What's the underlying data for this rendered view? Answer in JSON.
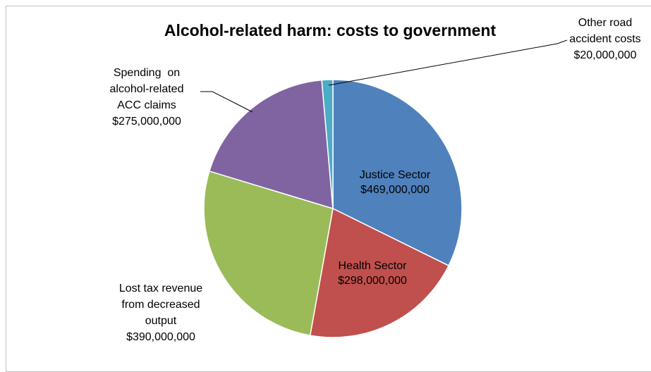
{
  "chart_data": {
    "type": "pie",
    "title": "Alcohol-related harm: costs to government",
    "start_angle_deg": 0,
    "direction": "clockwise",
    "slices": [
      {
        "name": "Justice Sector",
        "value": 469000000,
        "value_label": "$469,000,000",
        "label_lines": [
          "Justice Sector",
          "$469,000,000"
        ],
        "color": "#4f81bd"
      },
      {
        "name": "Health Sector",
        "value": 298000000,
        "value_label": "$298,000,000",
        "label_lines": [
          "Health Sector",
          "$298,000,000"
        ],
        "color": "#c0504d"
      },
      {
        "name": "Lost tax revenue from decreased output",
        "value": 390000000,
        "value_label": "$390,000,000",
        "label_lines": [
          "Lost tax revenue",
          "from decreased",
          "output",
          "$390,000,000"
        ],
        "color": "#9bbb59"
      },
      {
        "name": "Spending on alcohol-related ACC claims",
        "value": 275000000,
        "value_label": "$275,000,000",
        "label_lines": [
          "Spending  on",
          "alcohol-related",
          "ACC claims",
          "$275,000,000"
        ],
        "color": "#8064a2"
      },
      {
        "name": "Other road accident costs",
        "value": 20000000,
        "value_label": "$20,000,000",
        "label_lines": [
          "Other road",
          "accident costs",
          "$20,000,000"
        ],
        "color": "#4bacc6"
      }
    ]
  }
}
